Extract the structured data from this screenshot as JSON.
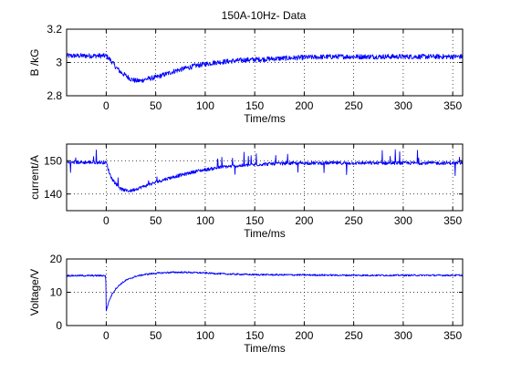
{
  "figure": {
    "title": "150A-10Hz- Data"
  },
  "chart_data": [
    {
      "type": "line",
      "title": "150A-10Hz- Data",
      "xlabel": "Time/ms",
      "ylabel": "B /kG",
      "xlim": [
        -40,
        360
      ],
      "ylim": [
        2.8,
        3.2
      ],
      "xticks": [
        0,
        50,
        100,
        150,
        200,
        250,
        300,
        350
      ],
      "yticks": [
        2.8,
        3,
        3.2
      ],
      "ytick_labels": [
        "2.8",
        "3",
        "3.2"
      ],
      "grid": "dotted",
      "color": "#0000ff",
      "series": [
        {
          "x": [
            -40,
            0,
            5,
            10,
            15,
            20,
            25,
            30,
            35,
            40,
            50,
            60,
            70,
            80,
            90,
            100,
            110,
            120,
            140,
            160,
            180,
            200,
            230,
            260,
            300,
            330,
            360
          ],
          "y": [
            3.04,
            3.04,
            3.01,
            2.97,
            2.94,
            2.92,
            2.9,
            2.89,
            2.89,
            2.9,
            2.91,
            2.93,
            2.95,
            2.965,
            2.98,
            2.99,
            3.0,
            3.005,
            3.015,
            3.02,
            3.025,
            3.03,
            3.035,
            3.035,
            3.035,
            3.035,
            3.035
          ],
          "noise": 0.015
        }
      ]
    },
    {
      "type": "line",
      "xlabel": "Time/ms",
      "ylabel": "current/A",
      "xlim": [
        -40,
        360
      ],
      "ylim": [
        135,
        155
      ],
      "xticks": [
        0,
        50,
        100,
        150,
        200,
        250,
        300,
        350
      ],
      "yticks": [
        140,
        150
      ],
      "ytick_labels": [
        "140",
        "150"
      ],
      "grid": "dotted",
      "color": "#0000ff",
      "series": [
        {
          "x": [
            -40,
            0,
            3,
            6,
            10,
            15,
            20,
            25,
            30,
            40,
            50,
            60,
            70,
            80,
            90,
            100,
            120,
            140,
            160,
            180,
            200,
            250,
            300,
            360
          ],
          "y": [
            149.5,
            149.5,
            146.5,
            144.5,
            143,
            141.5,
            141,
            141,
            141.5,
            142.5,
            143.5,
            144.5,
            145.3,
            146,
            146.8,
            147.3,
            148.2,
            148.6,
            149,
            149.2,
            149.3,
            149.3,
            149.3,
            149.3
          ],
          "noise": 0.5,
          "spikes": 2.5
        }
      ]
    },
    {
      "type": "line",
      "xlabel": "Time/ms",
      "ylabel": "Voltage/V",
      "xlim": [
        -40,
        360
      ],
      "ylim": [
        0,
        20
      ],
      "xticks": [
        0,
        50,
        100,
        150,
        200,
        250,
        300,
        350
      ],
      "yticks": [
        0,
        10,
        20
      ],
      "ytick_labels": [
        "0",
        "10",
        "20"
      ],
      "grid": "dotted",
      "color": "#0000ff",
      "series": [
        {
          "x": [
            -40,
            -0.5,
            0,
            1,
            3,
            6,
            10,
            15,
            20,
            30,
            40,
            50,
            60,
            70,
            80,
            100,
            120,
            150,
            200,
            250,
            300,
            360
          ],
          "y": [
            15,
            15,
            4.5,
            5.5,
            7.5,
            9.5,
            11.2,
            12.6,
            13.6,
            14.8,
            15.4,
            15.7,
            15.9,
            16,
            16,
            15.8,
            15.5,
            15.3,
            15.2,
            15.1,
            15.1,
            15.1
          ],
          "noise": 0.25
        }
      ]
    }
  ]
}
